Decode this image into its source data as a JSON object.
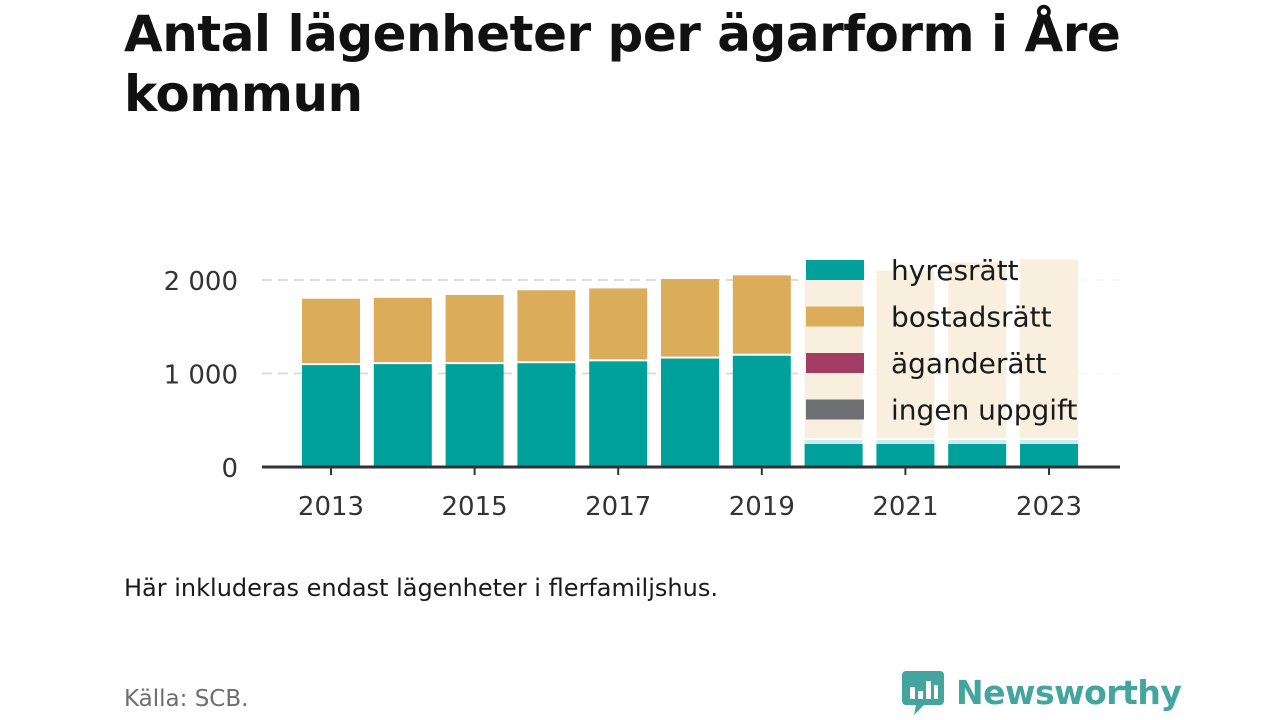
{
  "header": {
    "title": "Antal lägenheter per ägarform i Åre kommun"
  },
  "footer": {
    "note": "Här inkluderas endast lägenheter i flerfamiljshus.",
    "source": "Källa: SCB.",
    "brand_name": "Newsworthy",
    "brand_icon": "bar-chart-speech-bubble-icon"
  },
  "colors": {
    "hyresratt": "#00a19a",
    "bostadsratt": "#dbad5a",
    "aganderatt": "#a23c63",
    "ingen_uppgift": "#6e6e75",
    "gridline": "#dcdcdc",
    "axis": "#333333",
    "brand": "#43a59d"
  },
  "chart_data": {
    "type": "bar",
    "stacked": true,
    "categories": [
      "2013",
      "2014",
      "2015",
      "2016",
      "2017",
      "2018",
      "2019",
      "2020",
      "2021",
      "2022",
      "2023"
    ],
    "x_tick_labels": [
      "2013",
      "2015",
      "2017",
      "2019",
      "2021",
      "2023"
    ],
    "y_ticks": [
      0,
      1000,
      2000
    ],
    "y_tick_labels": [
      "0",
      "1 000",
      "2 000"
    ],
    "ylim": [
      0,
      2300
    ],
    "grid": true,
    "legend_position": "top-right, overlapping last bars",
    "series": [
      {
        "name": "hyresrätt",
        "color_key": "hyresratt",
        "values": [
          1090,
          1100,
          1100,
          1110,
          1130,
          1160,
          1190,
          290,
          290,
          290,
          290
        ]
      },
      {
        "name": "bostadsrätt",
        "color_key": "bostadsratt",
        "values": [
          710,
          710,
          740,
          780,
          780,
          850,
          860,
          1760,
          1810,
          1900,
          1930
        ]
      },
      {
        "name": "äganderätt",
        "color_key": "aganderatt",
        "values": [
          0,
          0,
          0,
          0,
          0,
          0,
          0,
          0,
          0,
          0,
          0
        ]
      },
      {
        "name": "ingen uppgift",
        "color_key": "ingen_uppgift",
        "values": [
          0,
          0,
          0,
          0,
          0,
          0,
          0,
          0,
          0,
          0,
          0
        ]
      }
    ]
  }
}
